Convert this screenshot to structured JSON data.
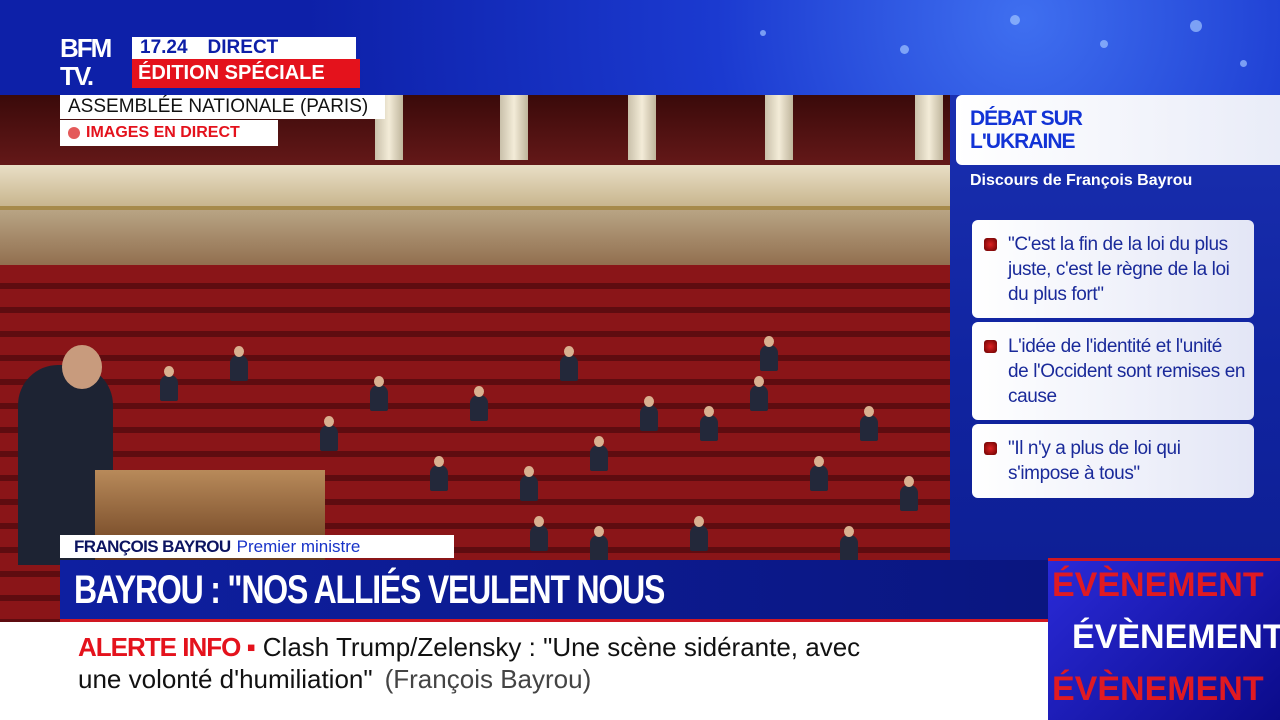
{
  "channel": {
    "logo": "BFM TV.",
    "time": "17.24",
    "live_label": "DIRECT",
    "edition": "ÉDITION SPÉCIALE"
  },
  "location": {
    "place": "ASSEMBLÉE NATIONALE (PARIS)",
    "live_images": "IMAGES EN DIRECT"
  },
  "panel": {
    "title": "DÉBAT SUR L'UKRAINE",
    "subtitle": "Discours de François Bayrou",
    "quotes": [
      "\"C'est la fin de la loi du plus juste, c'est le règne de la loi du plus fort\"",
      "L'idée de l'identité et l'unité de l'Occident sont remises en cause",
      "\"Il n'y a plus de loi qui s'impose à tous\""
    ]
  },
  "lower_third": {
    "name": "FRANÇOIS BAYROU",
    "role": "Premier ministre",
    "headline": "BAYROU : \"NOS ALLIÉS VEULENT NOUS ASSUJETTIR\""
  },
  "ticker": {
    "label": "ALERTE INFO ▪",
    "line1": "Clash Trump/Zelensky : \"Une scène sidérante, avec",
    "line2": "une volonté d'humiliation\"",
    "source": "(François Bayrou)"
  },
  "event_banner": {
    "text_red": "ÉVÈNEMENT",
    "text_white": "ÉVÈNEMENT"
  },
  "colors": {
    "brand_blue": "#0d1fa8",
    "alert_red": "#e4121c"
  }
}
